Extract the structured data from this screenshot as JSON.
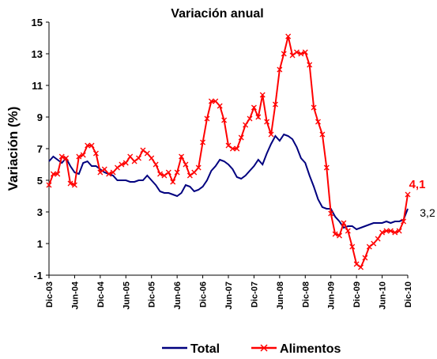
{
  "chart_data": {
    "type": "line",
    "title": "Variación anual",
    "y_label": "Variación (%)",
    "categories": [
      "Dic-03",
      null,
      null,
      null,
      null,
      null,
      "Jun-04",
      null,
      null,
      null,
      null,
      null,
      "Dic-04",
      null,
      null,
      null,
      null,
      null,
      "Jun-05",
      null,
      null,
      null,
      null,
      null,
      "Dic-05",
      null,
      null,
      null,
      null,
      null,
      "Jun-06",
      null,
      null,
      null,
      null,
      null,
      "Dic-06",
      null,
      null,
      null,
      null,
      null,
      "Jun-07",
      null,
      null,
      null,
      null,
      null,
      "Dic-07",
      null,
      null,
      null,
      null,
      null,
      "Jun-08",
      null,
      null,
      null,
      null,
      null,
      "Dic-08",
      null,
      null,
      null,
      null,
      null,
      "Jun-09",
      null,
      null,
      null,
      null,
      null,
      "Dic-09",
      null,
      null,
      null,
      null,
      null,
      "Jun-10",
      null,
      null,
      null,
      null,
      null,
      "Dic-10"
    ],
    "series": [
      {
        "name": "Total",
        "color": "#00007f",
        "marker": "none",
        "values": [
          6.2,
          6.5,
          6.3,
          6.1,
          6.4,
          5.9,
          5.5,
          5.4,
          6.1,
          6.2,
          5.9,
          5.9,
          5.7,
          5.5,
          5.4,
          5.3,
          5.0,
          5.0,
          5.0,
          4.9,
          4.9,
          5.0,
          5.0,
          5.3,
          5.0,
          4.7,
          4.3,
          4.2,
          4.2,
          4.1,
          4.0,
          4.2,
          4.7,
          4.6,
          4.3,
          4.4,
          4.6,
          5.0,
          5.6,
          5.9,
          6.3,
          6.2,
          6.0,
          5.7,
          5.2,
          5.1,
          5.3,
          5.6,
          5.9,
          6.3,
          6.0,
          6.7,
          7.3,
          7.8,
          7.5,
          7.9,
          7.8,
          7.6,
          7.1,
          6.4,
          6.1,
          5.3,
          4.6,
          3.8,
          3.3,
          3.2,
          3.2,
          2.7,
          2.4,
          2.0,
          2.1,
          2.1,
          1.9,
          2.0,
          2.1,
          2.2,
          2.3,
          2.3,
          2.3,
          2.4,
          2.3,
          2.4,
          2.4,
          2.5,
          3.2
        ],
        "value_labels": [
          null,
          null,
          null,
          null,
          null,
          null,
          null,
          null,
          null,
          null,
          null,
          null,
          null,
          null,
          null,
          null,
          null,
          null,
          null,
          null,
          null,
          null,
          null,
          null,
          null,
          null,
          null,
          null,
          null,
          null,
          null,
          null,
          null,
          null,
          null,
          null,
          null,
          null,
          null,
          null,
          null,
          null,
          null,
          null,
          null,
          null,
          null,
          null,
          null,
          null,
          null,
          null,
          null,
          null,
          null,
          null,
          null,
          null,
          null,
          null,
          null,
          null,
          null,
          null,
          null,
          null,
          null,
          null,
          null,
          null,
          null,
          null,
          null,
          null,
          null,
          null,
          null,
          null,
          null,
          null,
          null,
          null,
          null,
          null,
          "3,2"
        ]
      },
      {
        "name": "Alimentos",
        "color": "#ff0000",
        "marker": "x",
        "values": [
          4.7,
          5.4,
          5.4,
          6.5,
          6.4,
          4.8,
          4.7,
          6.5,
          6.6,
          7.2,
          7.2,
          6.7,
          5.5,
          5.7,
          5.4,
          5.5,
          5.8,
          6.0,
          6.1,
          6.5,
          6.2,
          6.4,
          6.9,
          6.7,
          6.4,
          6.0,
          5.4,
          5.3,
          5.5,
          4.9,
          5.5,
          6.5,
          6.0,
          5.3,
          5.5,
          5.8,
          7.4,
          8.9,
          10.0,
          10.0,
          9.7,
          8.8,
          7.2,
          7.0,
          7.0,
          7.7,
          8.5,
          8.9,
          9.6,
          9.0,
          10.4,
          8.7,
          7.9,
          9.8,
          12.0,
          13.0,
          14.1,
          12.9,
          13.1,
          13.0,
          13.1,
          12.3,
          9.6,
          8.7,
          7.9,
          5.8,
          2.9,
          1.6,
          1.5,
          2.3,
          1.8,
          0.8,
          -0.3,
          -0.5,
          0.1,
          0.8,
          1.0,
          1.3,
          1.7,
          1.8,
          1.8,
          1.7,
          1.8,
          2.4,
          4.1
        ],
        "value_labels": [
          null,
          null,
          null,
          null,
          null,
          null,
          null,
          null,
          null,
          null,
          null,
          null,
          null,
          null,
          null,
          null,
          null,
          null,
          null,
          null,
          null,
          null,
          null,
          null,
          null,
          null,
          null,
          null,
          null,
          null,
          null,
          null,
          null,
          null,
          null,
          null,
          null,
          null,
          null,
          null,
          null,
          null,
          null,
          null,
          null,
          null,
          null,
          null,
          null,
          null,
          null,
          null,
          null,
          null,
          null,
          null,
          null,
          null,
          null,
          null,
          null,
          null,
          null,
          null,
          null,
          null,
          null,
          null,
          null,
          null,
          null,
          null,
          null,
          null,
          null,
          null,
          null,
          null,
          null,
          null,
          null,
          null,
          null,
          null,
          "4,1"
        ]
      }
    ],
    "ylim": [
      -1,
      15
    ],
    "yticks": [
      -1,
      1,
      3,
      5,
      7,
      9,
      11,
      13,
      15
    ],
    "grid": false,
    "legend": "bottom"
  }
}
